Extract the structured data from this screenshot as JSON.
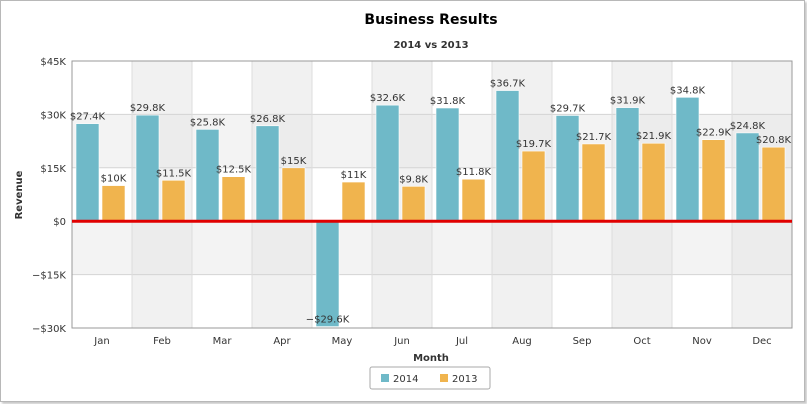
{
  "chart_data": {
    "type": "bar",
    "title": "Business Results",
    "subtitle": "2014 vs 2013",
    "xlabel": "Month",
    "ylabel": "Revenue",
    "categories": [
      "Jan",
      "Feb",
      "Mar",
      "Apr",
      "May",
      "Jun",
      "Jul",
      "Aug",
      "Sep",
      "Oct",
      "Nov",
      "Dec"
    ],
    "series": [
      {
        "name": "2014",
        "color": "#6fb9c8",
        "values": [
          27.4,
          29.8,
          25.8,
          26.8,
          -29.6,
          32.6,
          31.8,
          36.7,
          29.7,
          31.9,
          34.8,
          24.8
        ],
        "labels": [
          "$27.4K",
          "$29.8K",
          "$25.8K",
          "$26.8K",
          "−$29.6K",
          "$32.6K",
          "$31.8K",
          "$36.7K",
          "$29.7K",
          "$31.9K",
          "$34.8K",
          "$24.8K"
        ]
      },
      {
        "name": "2013",
        "color": "#f0b44e",
        "values": [
          10,
          11.5,
          12.5,
          15,
          11,
          9.8,
          11.8,
          19.7,
          21.7,
          21.9,
          22.9,
          20.8
        ],
        "labels": [
          "$10K",
          "$11.5K",
          "$12.5K",
          "$15K",
          "$11K",
          "$9.8K",
          "$11.8K",
          "$19.7K",
          "$21.7K",
          "$21.9K",
          "$22.9K",
          "$20.8K"
        ]
      }
    ],
    "ylim": [
      -30,
      45
    ],
    "yticks": [
      45,
      30,
      15,
      0,
      -15,
      -30
    ],
    "ytick_labels": [
      "$45K",
      "$30K",
      "$15K",
      "$0",
      "−$15K",
      "−$30K"
    ],
    "zero_line_color": "#e00000",
    "grid": true,
    "legend_position": "bottom-center"
  }
}
